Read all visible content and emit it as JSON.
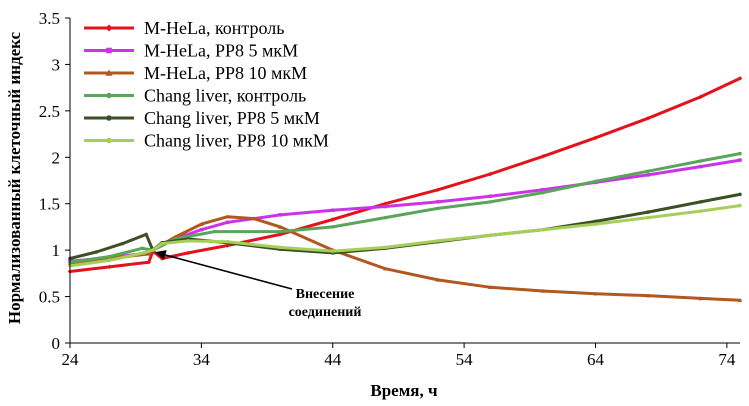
{
  "chart_data": {
    "type": "line",
    "title": "",
    "xlabel": "Время, ч",
    "ylabel": "Нормализованный клеточный индекс",
    "xlim": [
      24,
      75
    ],
    "ylim": [
      0,
      3.5
    ],
    "x_ticks": [
      24,
      34,
      44,
      54,
      64,
      74
    ],
    "y_ticks": [
      0,
      0.5,
      1,
      1.5,
      2,
      2.5,
      3,
      3.5
    ],
    "x_tick_labels": [
      "24",
      "34",
      "44",
      "54",
      "64",
      "74"
    ],
    "y_tick_labels": [
      "0",
      "0.5",
      "1",
      "1.5",
      "2",
      "2.5",
      "3",
      "3.5"
    ],
    "grid": false,
    "legend_position": "top-left",
    "annotation": {
      "lines": [
        "Внесение",
        "соединений"
      ],
      "points_to": [
        30.3,
        1.0
      ]
    },
    "series": [
      {
        "name": "M-HeLa, контроль",
        "color": "#e3121b",
        "marker": "diamond",
        "points": [
          [
            24,
            0.77
          ],
          [
            27,
            0.82
          ],
          [
            30,
            0.87
          ],
          [
            30.3,
            0.99
          ],
          [
            31,
            0.91
          ],
          [
            33,
            0.97
          ],
          [
            36,
            1.05
          ],
          [
            40,
            1.17
          ],
          [
            44,
            1.33
          ],
          [
            48,
            1.5
          ],
          [
            52,
            1.65
          ],
          [
            56,
            1.82
          ],
          [
            60,
            2.01
          ],
          [
            64,
            2.21
          ],
          [
            68,
            2.42
          ],
          [
            72,
            2.65
          ],
          [
            75,
            2.85
          ]
        ]
      },
      {
        "name": "M-HeLa, PP8 5 мкМ",
        "color": "#cc33e6",
        "marker": "square",
        "points": [
          [
            24,
            0.88
          ],
          [
            27,
            0.92
          ],
          [
            30,
            0.97
          ],
          [
            30.3,
            1.0
          ],
          [
            32,
            1.12
          ],
          [
            34,
            1.22
          ],
          [
            36,
            1.3
          ],
          [
            40,
            1.38
          ],
          [
            44,
            1.43
          ],
          [
            48,
            1.47
          ],
          [
            52,
            1.52
          ],
          [
            56,
            1.58
          ],
          [
            60,
            1.65
          ],
          [
            64,
            1.73
          ],
          [
            68,
            1.81
          ],
          [
            72,
            1.9
          ],
          [
            75,
            1.97
          ]
        ]
      },
      {
        "name": "M-HeLa, PP8 10 мкМ",
        "color": "#b0581f",
        "marker": "triangle",
        "points": [
          [
            24,
            0.86
          ],
          [
            27,
            0.91
          ],
          [
            30,
            0.96
          ],
          [
            30.3,
            1.0
          ],
          [
            32,
            1.14
          ],
          [
            34,
            1.28
          ],
          [
            36,
            1.36
          ],
          [
            38,
            1.34
          ],
          [
            40,
            1.25
          ],
          [
            44,
            1.0
          ],
          [
            48,
            0.8
          ],
          [
            52,
            0.68
          ],
          [
            56,
            0.6
          ],
          [
            60,
            0.56
          ],
          [
            64,
            0.53
          ],
          [
            68,
            0.51
          ],
          [
            72,
            0.48
          ],
          [
            75,
            0.46
          ]
        ]
      },
      {
        "name": "Chang liver, контроль",
        "color": "#5aa55a",
        "marker": "circle",
        "points": [
          [
            24,
            0.87
          ],
          [
            27,
            0.93
          ],
          [
            29.5,
            1.02
          ],
          [
            30.3,
            1.0
          ],
          [
            32,
            1.12
          ],
          [
            35,
            1.2
          ],
          [
            40,
            1.2
          ],
          [
            44,
            1.25
          ],
          [
            48,
            1.35
          ],
          [
            52,
            1.45
          ],
          [
            56,
            1.52
          ],
          [
            60,
            1.62
          ],
          [
            64,
            1.74
          ],
          [
            68,
            1.85
          ],
          [
            72,
            1.96
          ],
          [
            75,
            2.04
          ]
        ]
      },
      {
        "name": "Chang liver, PP8 5 мкМ",
        "color": "#3d4f24",
        "marker": "circle",
        "points": [
          [
            24,
            0.91
          ],
          [
            26,
            0.98
          ],
          [
            28,
            1.07
          ],
          [
            29.8,
            1.17
          ],
          [
            30.3,
            1.0
          ],
          [
            31,
            1.08
          ],
          [
            33,
            1.12
          ],
          [
            36,
            1.08
          ],
          [
            40,
            1.01
          ],
          [
            44,
            0.97
          ],
          [
            48,
            1.02
          ],
          [
            52,
            1.09
          ],
          [
            56,
            1.16
          ],
          [
            60,
            1.22
          ],
          [
            64,
            1.31
          ],
          [
            68,
            1.41
          ],
          [
            72,
            1.52
          ],
          [
            75,
            1.6
          ]
        ]
      },
      {
        "name": "Chang liver, PP8 10 мкМ",
        "color": "#a6cf5a",
        "marker": "circle",
        "points": [
          [
            24,
            0.83
          ],
          [
            27,
            0.89
          ],
          [
            29.6,
            0.97
          ],
          [
            30.3,
            1.0
          ],
          [
            31,
            1.07
          ],
          [
            33,
            1.1
          ],
          [
            36,
            1.09
          ],
          [
            40,
            1.03
          ],
          [
            44,
            0.99
          ],
          [
            48,
            1.03
          ],
          [
            52,
            1.1
          ],
          [
            56,
            1.16
          ],
          [
            60,
            1.22
          ],
          [
            64,
            1.28
          ],
          [
            68,
            1.35
          ],
          [
            72,
            1.42
          ],
          [
            75,
            1.48
          ]
        ]
      }
    ]
  }
}
